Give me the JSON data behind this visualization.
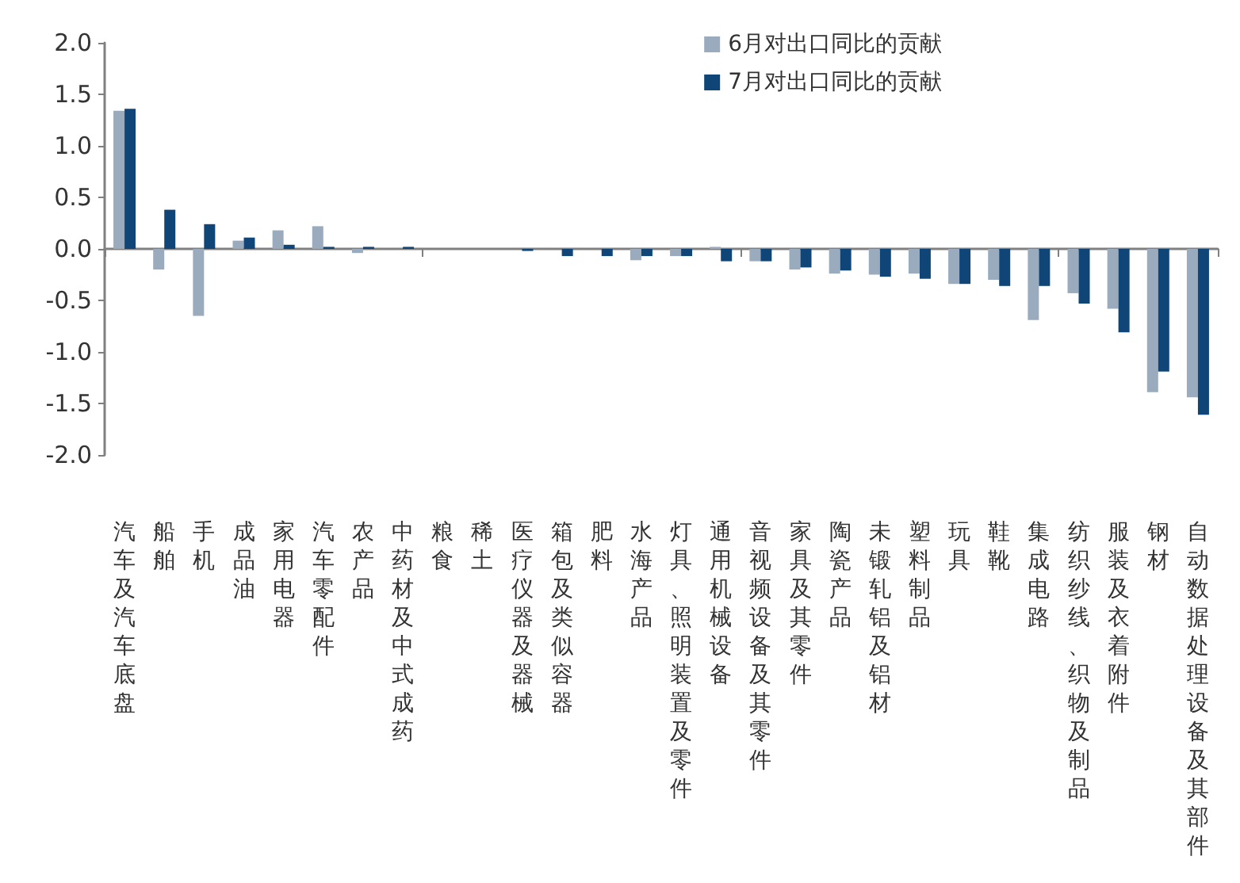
{
  "chart_data": {
    "type": "bar",
    "categories": [
      "汽车及汽车底盘",
      "船舶",
      "手机",
      "成品油",
      "家用电器",
      "汽车零配件",
      "农产品",
      "中药材及中式成药",
      "粮食",
      "稀土",
      "医疗仪器及器械",
      "箱包及类似容器",
      "肥料",
      "水海产品",
      "灯具、照明装置及零件",
      "通用机械设备",
      "音视频设备及其零件",
      "家具及其零件",
      "陶瓷产品",
      "未锻轧铝及铝材",
      "塑料制品",
      "玩具",
      "鞋靴",
      "集成电路",
      "纺织纱线、织物及制品",
      "服装及衣着附件",
      "钢材",
      "自动数据处理设备及其部件"
    ],
    "series": [
      {
        "name": "6月对出口同比的贡献",
        "color": "#9aabbd",
        "values": [
          1.34,
          -0.2,
          -0.65,
          0.08,
          0.18,
          0.22,
          -0.04,
          0,
          0,
          0,
          0,
          0,
          0,
          -0.11,
          -0.07,
          0.02,
          -0.12,
          -0.2,
          -0.24,
          -0.25,
          -0.24,
          -0.34,
          -0.3,
          -0.69,
          -0.43,
          -0.58,
          -1.39,
          -1.44
        ]
      },
      {
        "name": "7月对出口同比的贡献",
        "color": "#0f4677",
        "values": [
          1.36,
          0.38,
          0.24,
          0.11,
          0.04,
          0.02,
          0.02,
          0.02,
          0,
          0,
          -0.02,
          -0.07,
          -0.07,
          -0.07,
          -0.07,
          -0.12,
          -0.12,
          -0.18,
          -0.21,
          -0.27,
          -0.29,
          -0.34,
          -0.36,
          -0.36,
          -0.53,
          -0.81,
          -1.19,
          -1.61
        ]
      }
    ],
    "ylim": [
      -2,
      2
    ],
    "yticks": [
      {
        "value": -2,
        "label": "-2.0"
      },
      {
        "value": -1.5,
        "label": "-1.5"
      },
      {
        "value": -1,
        "label": "-1.0"
      },
      {
        "value": -0.5,
        "label": "-0.5"
      },
      {
        "value": 0,
        "label": "0.0"
      },
      {
        "value": 0.5,
        "label": "0.5"
      },
      {
        "value": 1,
        "label": "1.0"
      },
      {
        "value": 1.5,
        "label": "1.5"
      },
      {
        "value": 2,
        "label": "2.0"
      }
    ],
    "legend": "top right"
  }
}
